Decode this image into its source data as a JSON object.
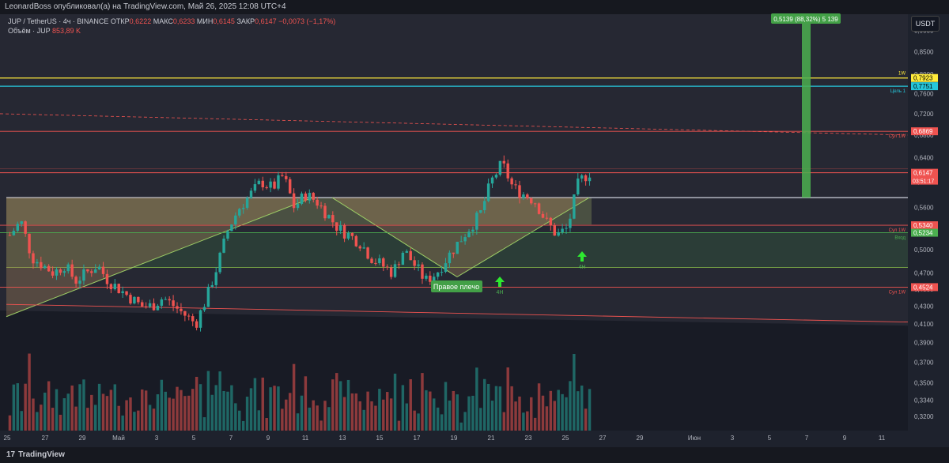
{
  "header": {
    "publisher": "LeonardBoss опубликовал(а) на TradingView.com, Май 26, 2025 12:08 UTC+4"
  },
  "legend": {
    "symbol": "JUP / TetherUS · 4ч · BINANCE",
    "open_label": "ОТКР",
    "open": "0,6222",
    "high_label": "МАКС",
    "high": "0,6233",
    "low_label": "МИН",
    "low": "0,6145",
    "close_label": "ЗАКР",
    "close": "0,6147",
    "change": "−0,0073 (−1,17%)",
    "volume_label": "Объём · JUP",
    "volume": "853,89 K"
  },
  "currency_button": "USDT",
  "footer": {
    "brand": "TradingView"
  },
  "colors": {
    "background": "#1e222d",
    "up": "#26a69a",
    "down": "#ef5350",
    "yellow": "#ffeb3b",
    "cyan": "#26c6da",
    "zone_fill": "#8f9a5e",
    "measure_green": "#4caf50"
  },
  "chart_data": {
    "type": "candlestick",
    "price_axis": {
      "scale": "log",
      "ticks": [
        "0,9000",
        "0,8500",
        "0,8000",
        "0,7600",
        "0,7200",
        "0,6800",
        "0,6400",
        "0,6000",
        "0,5600",
        "0,5300",
        "0,5000",
        "0,4700",
        "0,4500",
        "0,4300",
        "0,4100",
        "0,3900",
        "0,3700",
        "0,3500",
        "0,3340",
        "0,3200"
      ],
      "range": [
        0.308,
        0.94
      ]
    },
    "time_axis": {
      "ticks": [
        "25",
        "27",
        "29",
        "Май",
        "3",
        "5",
        "7",
        "9",
        "11",
        "13",
        "15",
        "17",
        "19",
        "21",
        "23",
        "25",
        "27",
        "29",
        "Июн",
        "3",
        "5",
        "7",
        "9",
        "11"
      ]
    },
    "levels": [
      {
        "name": "1W",
        "price": 0.7923,
        "label": "0,7923",
        "color": "#ffeb3b"
      },
      {
        "name": "Цель 1",
        "price": 0.7751,
        "label": "0,7751",
        "color": "#26c6da"
      },
      {
        "name": "Сул 1W",
        "price": 0.6869,
        "label": "0,6869",
        "color": "#ef5350"
      },
      {
        "name": "",
        "price": 0.6147,
        "label": "0,6147",
        "countdown": "03:51:17",
        "color": "#ef5350"
      },
      {
        "name": "Сул 1W",
        "price": 0.534,
        "label": "0,5340",
        "color": "#ef5350"
      },
      {
        "name": "Вход",
        "price": 0.5234,
        "label": "0,5234",
        "color": "#4caf50"
      },
      {
        "name": "Сул 1W",
        "price": 0.4524,
        "label": "0,4524",
        "color": "#ef5350"
      }
    ],
    "measure_label": "0,5139 (88,32%) 5 139",
    "annotations": [
      {
        "text": "Правое плечо"
      },
      {
        "text": "4H"
      },
      {
        "text": "4H"
      }
    ],
    "approximate_close_path": [
      0.52,
      0.54,
      0.49,
      0.48,
      0.47,
      0.48,
      0.46,
      0.47,
      0.48,
      0.46,
      0.45,
      0.44,
      0.43,
      0.43,
      0.44,
      0.43,
      0.42,
      0.41,
      0.44,
      0.48,
      0.53,
      0.56,
      0.58,
      0.6,
      0.59,
      0.61,
      0.56,
      0.58,
      0.57,
      0.55,
      0.53,
      0.52,
      0.51,
      0.49,
      0.48,
      0.47,
      0.5,
      0.48,
      0.46,
      0.47,
      0.49,
      0.51,
      0.53,
      0.55,
      0.6,
      0.63,
      0.59,
      0.58,
      0.57,
      0.54,
      0.52,
      0.53,
      0.6,
      0.615
    ]
  }
}
